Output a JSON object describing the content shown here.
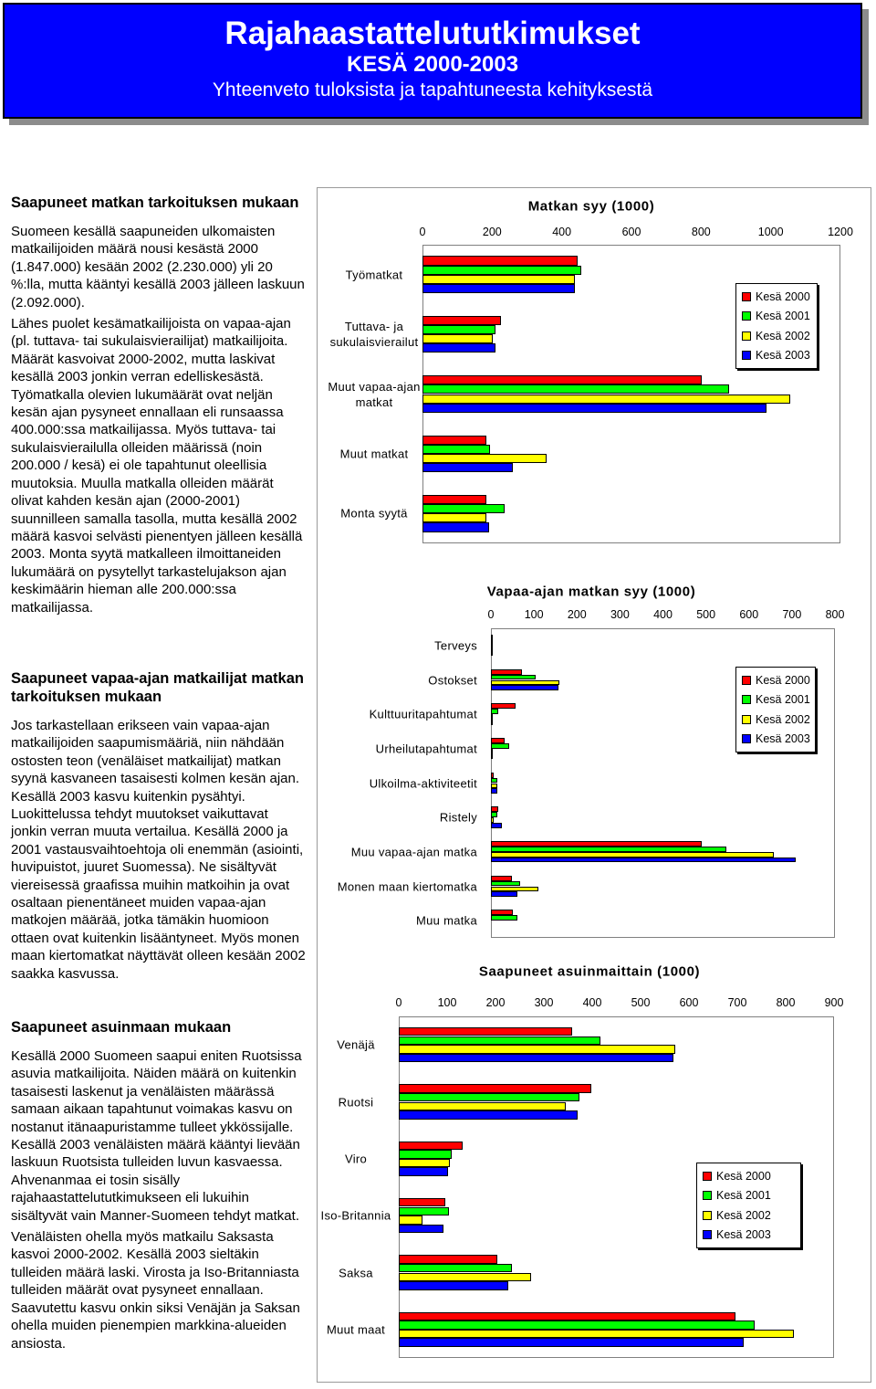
{
  "header": {
    "title": "Rajahaastattelututkimukset",
    "subtitle": "KESÄ 2000-2003",
    "tagline": "Yhteenveto tuloksista ja tapahtuneesta kehityksestä"
  },
  "sections": [
    {
      "heading": "Saapuneet matkan tarkoituksen mukaan",
      "paragraphs": [
        "Suomeen kesällä saapuneiden ulkomaisten matkailijoiden määrä nousi kesästä 2000 (1.847.000) kesään 2002 (2.230.000) yli 20 %:lla, mutta kääntyi kesällä 2003 jälleen laskuun (2.092.000).",
        "Lähes puolet kesämatkailijoista on vapaa-ajan (pl. tuttava- tai sukulaisvierailijat) matkailijoita. Määrät kasvoivat 2000-2002, mutta laskivat kesällä 2003 jonkin verran edelliskesästä. Työmatkalla olevien lukumäärät ovat neljän kesän ajan pysyneet ennallaan eli runsaassa 400.000:ssa matkailijassa. Myös tuttava- tai sukulaisvierailulla olleiden määrissä (noin 200.000 / kesä) ei ole tapahtunut oleellisia muutoksia. Muulla matkalla olleiden määrät olivat kahden kesän ajan (2000-2001) suunnilleen samalla tasolla, mutta kesällä 2002 määrä kasvoi selvästi pienentyen jälleen kesällä 2003. Monta syytä matkalleen ilmoittaneiden lukumäärä on pysytellyt tarkastelujakson ajan keskimäärin hieman alle 200.000:ssa matkailijassa."
      ]
    },
    {
      "heading": "Saapuneet vapaa-ajan matkailijat matkan tarkoituksen mukaan",
      "paragraphs": [
        "Jos tarkastellaan erikseen vain vapaa-ajan matkailijoiden saapumismääriä, niin nähdään ostosten teon (venäläiset matkailijat) matkan syynä kasvaneen tasaisesti kolmen kesän ajan. Kesällä 2003 kasvu kuitenkin pysähtyi. Luokittelussa tehdyt muutokset vaikuttavat jonkin verran muuta vertailua. Kesällä 2000 ja 2001 vastausvaihtoehtoja oli enemmän (asiointi, huvipuistot, juuret Suomessa). Ne sisältyvät viereisessä graafissa muihin matkoihin ja ovat osaltaan pienentäneet muiden vapaa-ajan matkojen määrää, jotka tämäkin huomioon ottaen ovat kuitenkin lisääntyneet. Myös monen maan kiertomatkat näyttävät olleen kesään 2002 saakka kasvussa."
      ]
    },
    {
      "heading": "Saapuneet asuinmaan mukaan",
      "paragraphs": [
        "Kesällä 2000 Suomeen saapui eniten Ruotsissa asuvia matkailijoita. Näiden määrä on kuitenkin tasaisesti laskenut ja venäläisten määrässä samaan aikaan tapahtunut voimakas kasvu on nostanut itänaapuristamme tulleet ykkössijalle. Kesällä 2003 venäläisten määrä kääntyi lievään laskuun Ruotsista tulleiden luvun kasvaessa. Ahvenanmaa ei tosin sisälly rajahaastattelututkimukseen eli lukuihin sisältyvät vain Manner-Suomeen tehdyt matkat.",
        "Venäläisten ohella myös matkailu Saksasta kasvoi 2000-2002. Kesällä 2003 sieltäkin tulleiden määrä laski. Virosta ja Iso-Britanniasta tulleiden määrät ovat pysyneet ennallaan. Saavutettu kasvu onkin siksi Venäjän ja Saksan ohella muiden pienempien markkina-alueiden ansiosta."
      ]
    }
  ],
  "chart_data": [
    {
      "type": "bar",
      "orientation": "horizontal",
      "title": "Matkan syy (1000)",
      "categories": [
        "Työmatkat",
        "Tuttava- ja sukulaisvierailut",
        "Muut vapaa-ajan matkat",
        "Muut matkat",
        "Monta syytä"
      ],
      "series": [
        {
          "name": "Kesä 2000",
          "color": "#ff0000",
          "values": [
            445,
            225,
            802,
            183,
            183
          ]
        },
        {
          "name": "Kesä 2001",
          "color": "#00ff00",
          "values": [
            455,
            210,
            880,
            194,
            236
          ]
        },
        {
          "name": "Kesä 2002",
          "color": "#ffff00",
          "values": [
            437,
            202,
            1056,
            356,
            183
          ]
        },
        {
          "name": "Kesä 2003",
          "color": "#0000ff",
          "values": [
            437,
            210,
            988,
            259,
            191
          ]
        }
      ],
      "xlim": [
        0,
        1200
      ],
      "xticks": [
        0,
        200,
        400,
        600,
        800,
        1000,
        1200
      ],
      "legend": "right"
    },
    {
      "type": "bar",
      "orientation": "horizontal",
      "title": "Vapaa-ajan matkan syy (1000)",
      "categories": [
        "Terveys",
        "Ostokset",
        "Kulttuuritapahtumat",
        "Urheilutapahtumat",
        "Ulkoilma-aktiviteetit",
        "Ristely",
        "Muu vapaa-ajan matka",
        "Monen maan kiertomatka",
        "Muu matka"
      ],
      "series": [
        {
          "name": "Kesä 2000",
          "color": "#ff0000",
          "values": [
            5,
            72,
            57,
            32,
            6,
            17,
            490,
            49,
            51
          ]
        },
        {
          "name": "Kesä 2001",
          "color": "#00ff00",
          "values": [
            2,
            104,
            17,
            42,
            15,
            15,
            548,
            68,
            62
          ]
        },
        {
          "name": "Kesä 2002",
          "color": "#ffff00",
          "values": [
            2,
            159,
            5,
            4,
            15,
            6,
            658,
            110,
            0
          ]
        },
        {
          "name": "Kesä 2003",
          "color": "#0000ff",
          "values": [
            3,
            157,
            5,
            4,
            15,
            25,
            709,
            62,
            0
          ]
        }
      ],
      "xlim": [
        0,
        800
      ],
      "xticks": [
        0,
        100,
        200,
        300,
        400,
        500,
        600,
        700,
        800
      ],
      "legend": "right"
    },
    {
      "type": "bar",
      "orientation": "horizontal",
      "title": "Saapuneet asuinmaittain (1000)",
      "categories": [
        "Venäjä",
        "Ruotsi",
        "Viro",
        "Iso-Britannia",
        "Saksa",
        "Muut maat"
      ],
      "series": [
        {
          "name": "Kesä 2000",
          "color": "#ff0000",
          "values": [
            358,
            398,
            132,
            96,
            204,
            696
          ]
        },
        {
          "name": "Kesä 2001",
          "color": "#00ff00",
          "values": [
            417,
            374,
            109,
            104,
            234,
            736
          ]
        },
        {
          "name": "Kesä 2002",
          "color": "#ffff00",
          "values": [
            572,
            345,
            106,
            49,
            274,
            817
          ]
        },
        {
          "name": "Kesä 2003",
          "color": "#0000ff",
          "values": [
            568,
            370,
            102,
            92,
            226,
            713
          ]
        }
      ],
      "xlim": [
        0,
        900
      ],
      "xticks": [
        0,
        100,
        200,
        300,
        400,
        500,
        600,
        700,
        800,
        900
      ],
      "legend": "right"
    }
  ]
}
